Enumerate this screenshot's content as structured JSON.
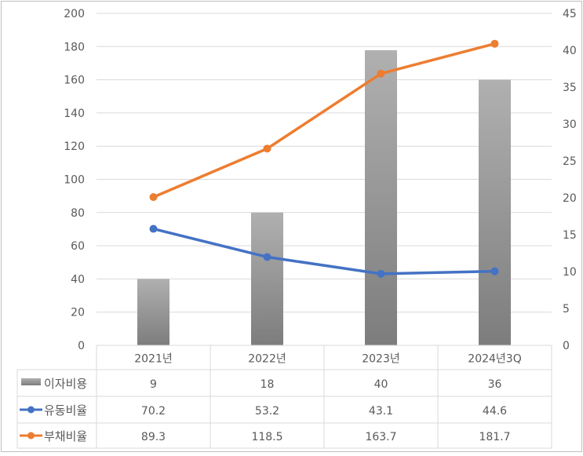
{
  "chart_data": {
    "type": "bar",
    "categories": [
      "2021년",
      "2022년",
      "2023년",
      "2024년3Q"
    ],
    "series": [
      {
        "name": "이자비용",
        "type": "bar",
        "axis": "right",
        "values": [
          9,
          18,
          40,
          36
        ],
        "display": [
          "9",
          "18",
          "40",
          "36"
        ],
        "color": "#9b9b9b"
      },
      {
        "name": "유동비율",
        "type": "line",
        "axis": "left",
        "values": [
          70.2,
          53.2,
          43.1,
          44.6
        ],
        "display": [
          "70.2",
          "53.2",
          "43.1",
          "44.6"
        ],
        "color": "#4472c4"
      },
      {
        "name": "부채비율",
        "type": "line",
        "axis": "left",
        "values": [
          89.3,
          118.5,
          163.7,
          181.7
        ],
        "display": [
          "89.3",
          "118.5",
          "163.7",
          "181.7"
        ],
        "color": "#ed7d31"
      }
    ],
    "y_left": {
      "min": 0,
      "max": 200,
      "step": 20,
      "ticks": [
        "0",
        "20",
        "40",
        "60",
        "80",
        "100",
        "120",
        "140",
        "160",
        "180",
        "200"
      ]
    },
    "y_right": {
      "min": 0,
      "max": 45,
      "step": 5,
      "ticks": [
        "0",
        "5",
        "10",
        "15",
        "20",
        "25",
        "30",
        "35",
        "40",
        "45"
      ]
    },
    "grid": true,
    "legend": "data-table"
  }
}
